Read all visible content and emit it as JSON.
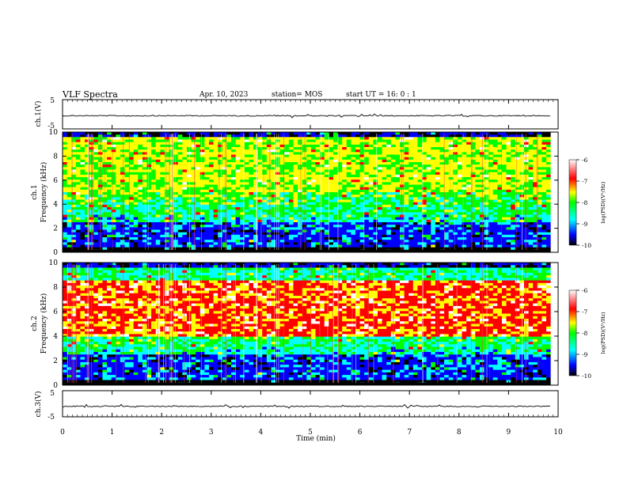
{
  "header": {
    "title": "VLF Spectra",
    "date": "Apr. 10, 2023",
    "station": "station= MOS",
    "start_ut": "start  UT =   16: 0  : 1"
  },
  "chart_data": [
    {
      "type": "line",
      "ylabel": "ch.1(V)",
      "ylim": [
        -5,
        5
      ],
      "yticks": [
        "5",
        "-5"
      ],
      "xlim": [
        0,
        10
      ],
      "baseline": -0.5,
      "colors": {
        "trace": "#000000"
      }
    },
    {
      "type": "heatmap",
      "ylabel_lines": [
        "ch.1",
        "Frequency (kHz)"
      ],
      "ylim": [
        0,
        10
      ],
      "yticks": [
        "0",
        "2",
        "4",
        "6",
        "8",
        "10"
      ],
      "xlim": [
        0,
        10
      ],
      "colorbar": {
        "label": "log(PSD)(V²/Hz)",
        "range": [
          -10,
          -6
        ],
        "ticks": [
          "-6",
          "-7",
          "-8",
          "-9",
          "-10"
        ]
      },
      "dominant_band_khz": [
        5,
        9.5
      ],
      "dominant_level": -7
    },
    {
      "type": "heatmap",
      "ylabel_lines": [
        "ch.2",
        "Frequency (kHz)"
      ],
      "ylim": [
        0,
        10
      ],
      "yticks": [
        "0",
        "2",
        "4",
        "6",
        "8",
        "10"
      ],
      "xlim": [
        0,
        10
      ],
      "colorbar": {
        "label": "log(PSD)(V²/Hz)",
        "range": [
          -10,
          -6
        ],
        "ticks": [
          "-6",
          "-7",
          "-8",
          "-9",
          "-10"
        ]
      },
      "dominant_band_khz": [
        4,
        8.5
      ],
      "dominant_level": -6.3
    },
    {
      "type": "line",
      "ylabel": "ch.3(V)",
      "ylim": [
        -5,
        5
      ],
      "yticks": [
        "5",
        "-5"
      ],
      "xlim": [
        0,
        10
      ],
      "baseline": -1,
      "colors": {
        "trace": "#000000"
      }
    }
  ],
  "x_axis": {
    "label": "Time (min)",
    "ticks": [
      "0",
      "1",
      "2",
      "3",
      "4",
      "5",
      "6",
      "7",
      "8",
      "9",
      "10"
    ]
  },
  "colormap": [
    "#ffffff",
    "#ff0000",
    "#ffff00",
    "#00ff00",
    "#00ffff",
    "#0000ff",
    "#000000"
  ]
}
